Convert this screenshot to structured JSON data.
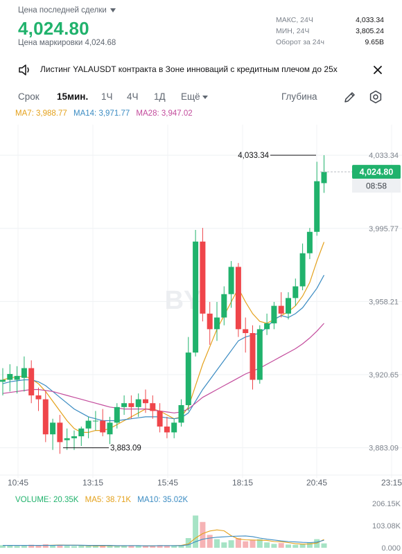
{
  "header": {
    "last_price_label": "Цена последней сделки",
    "last_price": "4,024.80",
    "mark_price_label": "Цена маркировки 4,024.68",
    "stats": [
      {
        "name": "МАКС, 24Ч",
        "value": "4,033.34"
      },
      {
        "name": "МИН, 24Ч",
        "value": "3,805.24"
      },
      {
        "name": "Оборот за 24ч",
        "value": "9.65B"
      }
    ]
  },
  "banner": {
    "icon": "speaker-icon",
    "text": "Листинг YALAUSDT контракта в Зоне инноваций с кредитным плечом до 25x",
    "close_icon": "close-icon"
  },
  "toolbar": {
    "items": [
      "Срок",
      "15мин.",
      "1Ч",
      "4Ч",
      "1Д",
      "Ещё"
    ],
    "active": "15мин.",
    "depth_label": "Глубина",
    "draw_icon": "pencil-icon",
    "settings_icon": "settings-icon"
  },
  "ma_legend": {
    "ma7": "MA7: 3,988.77",
    "ma14": "MA14: 3,971.77",
    "ma28": "MA28: 3,947.02"
  },
  "volume_legend": {
    "volume": "VOLUME: 20.35K",
    "ma5": "MA5: 38.71K",
    "ma10": "MA10: 35.02K"
  },
  "colors": {
    "up": "#20b26c",
    "down": "#ef454a",
    "ma7": "#e4a11b",
    "ma14": "#3a8bc2",
    "ma28": "#c34b9c",
    "price_tag": "#20b26c"
  },
  "chart_data": {
    "type": "candlestick",
    "y_ticks": [
      "4,033.34",
      "3,995.77",
      "3,958.21",
      "3,920.65",
      "3,883.09"
    ],
    "x_ticks": [
      "10:45",
      "13:15",
      "15:45",
      "18:15",
      "20:45",
      "23:15"
    ],
    "ylim": [
      3873.0,
      4043.0
    ],
    "current_price_tag": "4,024.80",
    "countdown": "08:58",
    "high_annotation": "4,033.34",
    "low_annotation": "3,883.09",
    "watermark": "BY",
    "candles": [
      {
        "o": 3917.0,
        "h": 3924.0,
        "l": 3910.0,
        "c": 3918.0
      },
      {
        "o": 3918.0,
        "h": 3926.0,
        "l": 3912.0,
        "c": 3921.0
      },
      {
        "o": 3918.0,
        "h": 3925.0,
        "l": 3911.0,
        "c": 3920.0
      },
      {
        "o": 3919.0,
        "h": 3930.0,
        "l": 3912.0,
        "c": 3924.0
      },
      {
        "o": 3924.0,
        "h": 3928.0,
        "l": 3906.0,
        "c": 3910.0
      },
      {
        "o": 3910.0,
        "h": 3914.0,
        "l": 3902.0,
        "c": 3908.0
      },
      {
        "o": 3908.0,
        "h": 3912.0,
        "l": 3886.0,
        "c": 3890.0
      },
      {
        "o": 3890.0,
        "h": 3898.0,
        "l": 3882.0,
        "c": 3896.0
      },
      {
        "o": 3896.0,
        "h": 3900.0,
        "l": 3880.0,
        "c": 3886.0
      },
      {
        "o": 3887.0,
        "h": 3893.0,
        "l": 3882.0,
        "c": 3888.0
      },
      {
        "o": 3888.0,
        "h": 3892.0,
        "l": 3882.0,
        "c": 3889.0
      },
      {
        "o": 3889.0,
        "h": 3894.0,
        "l": 3884.0,
        "c": 3893.0
      },
      {
        "o": 3893.0,
        "h": 3899.0,
        "l": 3888.0,
        "c": 3897.0
      },
      {
        "o": 3897.0,
        "h": 3902.0,
        "l": 3892.0,
        "c": 3897.0
      },
      {
        "o": 3897.0,
        "h": 3903.0,
        "l": 3889.0,
        "c": 3891.0
      },
      {
        "o": 3890.0,
        "h": 3899.0,
        "l": 3885.0,
        "c": 3896.0
      },
      {
        "o": 3896.0,
        "h": 3906.0,
        "l": 3893.0,
        "c": 3904.0
      },
      {
        "o": 3904.0,
        "h": 3910.0,
        "l": 3900.0,
        "c": 3906.0
      },
      {
        "o": 3906.0,
        "h": 3910.0,
        "l": 3898.0,
        "c": 3904.0
      },
      {
        "o": 3904.0,
        "h": 3911.0,
        "l": 3899.0,
        "c": 3908.0
      },
      {
        "o": 3908.0,
        "h": 3913.0,
        "l": 3901.0,
        "c": 3906.0
      },
      {
        "o": 3906.0,
        "h": 3910.0,
        "l": 3898.0,
        "c": 3902.0
      },
      {
        "o": 3902.0,
        "h": 3906.0,
        "l": 3891.0,
        "c": 3894.0
      },
      {
        "o": 3894.0,
        "h": 3899.0,
        "l": 3888.0,
        "c": 3891.0
      },
      {
        "o": 3891.0,
        "h": 3898.0,
        "l": 3888.0,
        "c": 3896.0
      },
      {
        "o": 3896.0,
        "h": 3908.0,
        "l": 3894.0,
        "c": 3905.0
      },
      {
        "o": 3905.0,
        "h": 3940.0,
        "l": 3902.0,
        "c": 3932.0
      },
      {
        "o": 3932.0,
        "h": 3995.0,
        "l": 3930.0,
        "c": 3989.0
      },
      {
        "o": 3989.0,
        "h": 3996.0,
        "l": 3948.0,
        "c": 3952.0
      },
      {
        "o": 3952.0,
        "h": 3958.0,
        "l": 3936.0,
        "c": 3944.0
      },
      {
        "o": 3944.0,
        "h": 3958.0,
        "l": 3938.0,
        "c": 3950.0
      },
      {
        "o": 3950.0,
        "h": 3966.0,
        "l": 3946.0,
        "c": 3962.0
      },
      {
        "o": 3962.0,
        "h": 3979.0,
        "l": 3955.0,
        "c": 3976.0
      },
      {
        "o": 3976.0,
        "h": 3978.0,
        "l": 3940.0,
        "c": 3944.0
      },
      {
        "o": 3944.0,
        "h": 3950.0,
        "l": 3932.0,
        "c": 3942.0
      },
      {
        "o": 3942.0,
        "h": 3946.0,
        "l": 3913.0,
        "c": 3918.0
      },
      {
        "o": 3918.0,
        "h": 3946.0,
        "l": 3916.0,
        "c": 3944.0
      },
      {
        "o": 3944.0,
        "h": 3952.0,
        "l": 3941.0,
        "c": 3947.0
      },
      {
        "o": 3947.0,
        "h": 3958.0,
        "l": 3944.0,
        "c": 3956.0
      },
      {
        "o": 3956.0,
        "h": 3963.0,
        "l": 3950.0,
        "c": 3952.0
      },
      {
        "o": 3952.0,
        "h": 3963.0,
        "l": 3949.0,
        "c": 3960.0
      },
      {
        "o": 3960.0,
        "h": 3970.0,
        "l": 3956.0,
        "c": 3966.0
      },
      {
        "o": 3966.0,
        "h": 3988.0,
        "l": 3964.0,
        "c": 3983.0
      },
      {
        "o": 3983.0,
        "h": 3996.0,
        "l": 3980.0,
        "c": 3994.0
      },
      {
        "o": 3994.0,
        "h": 4030.0,
        "l": 3992.0,
        "c": 4020.0
      },
      {
        "o": 4019.0,
        "h": 4033.34,
        "l": 4014.0,
        "c": 4024.8
      }
    ],
    "ma_series": {
      "MA7": [
        3918.0,
        3919.0,
        3919.5,
        3920.0,
        3918.5,
        3916.0,
        3912.0,
        3907.0,
        3902.0,
        3897.0,
        3893.0,
        3891.0,
        3891.0,
        3892.0,
        3892.0,
        3893.0,
        3895.0,
        3897.0,
        3899.0,
        3901.0,
        3903.0,
        3903.0,
        3902.0,
        3900.0,
        3898.0,
        3899.0,
        3904.0,
        3915.0,
        3926.0,
        3935.0,
        3944.0,
        3951.0,
        3958.0,
        3965.0,
        3958.0,
        3952.0,
        3948.0,
        3947.0,
        3949.0,
        3951.0,
        3953.0,
        3956.0,
        3961.0,
        3968.0,
        3979.0,
        3988.77
      ],
      "MA14": [
        3916.0,
        3917.0,
        3917.5,
        3918.0,
        3918.0,
        3917.0,
        3915.0,
        3912.0,
        3909.0,
        3906.0,
        3903.0,
        3901.0,
        3899.0,
        3898.0,
        3897.0,
        3897.0,
        3897.0,
        3897.5,
        3898.0,
        3898.5,
        3899.0,
        3899.0,
        3899.0,
        3898.5,
        3898.0,
        3898.5,
        3901.0,
        3907.0,
        3913.0,
        3918.0,
        3923.0,
        3928.0,
        3933.0,
        3938.0,
        3940.0,
        3941.0,
        3942.0,
        3945.0,
        3949.0,
        3951.0,
        3950.0,
        3952.0,
        3955.0,
        3960.0,
        3965.0,
        3971.77
      ],
      "MA28": [
        3911.0,
        3911.5,
        3912.0,
        3912.5,
        3913.0,
        3913.0,
        3912.5,
        3912.0,
        3911.0,
        3910.0,
        3909.0,
        3908.0,
        3907.0,
        3906.0,
        3905.0,
        3904.0,
        3903.5,
        3903.0,
        3903.0,
        3903.0,
        3903.0,
        3902.5,
        3902.0,
        3901.5,
        3901.0,
        3901.5,
        3903.0,
        3906.0,
        3909.0,
        3911.0,
        3913.0,
        3915.0,
        3917.0,
        3919.0,
        3921.0,
        3922.5,
        3924.0,
        3926.0,
        3928.0,
        3930.0,
        3932.0,
        3934.0,
        3936.5,
        3939.5,
        3943.0,
        3947.02
      ]
    },
    "volume": {
      "y_ticks": [
        "206.15K",
        "103.08K",
        "0.000"
      ],
      "ylim": [
        0,
        206.15
      ],
      "values": [
        12,
        10,
        8,
        9,
        14,
        10,
        16,
        12,
        14,
        9,
        8,
        10,
        8,
        9,
        11,
        10,
        9,
        8,
        11,
        10,
        9,
        10,
        12,
        9,
        10,
        12,
        45,
        150,
        120,
        60,
        40,
        25,
        35,
        45,
        30,
        35,
        40,
        25,
        18,
        22,
        15,
        14,
        16,
        25,
        40,
        20.35
      ],
      "ma5": [
        11,
        11,
        11,
        11,
        11,
        11,
        11,
        12,
        13,
        12,
        12,
        11,
        10,
        9,
        9,
        10,
        9,
        9,
        10,
        10,
        9,
        9,
        10,
        10,
        10,
        11,
        18,
        45,
        66,
        78,
        83,
        79,
        56,
        41,
        37,
        36,
        35,
        34,
        29,
        28,
        24,
        19,
        17,
        18,
        22,
        38.71
      ],
      "ma10": [
        11,
        11,
        11,
        11,
        11,
        11,
        11,
        11,
        12,
        12,
        12,
        12,
        11,
        11,
        11,
        11,
        10,
        10,
        10,
        10,
        9,
        9,
        10,
        10,
        10,
        10,
        14,
        28,
        40,
        45,
        49,
        51,
        53,
        54,
        55,
        52,
        45,
        40,
        36,
        32,
        29,
        27,
        25,
        24,
        26,
        35.02
      ]
    }
  }
}
